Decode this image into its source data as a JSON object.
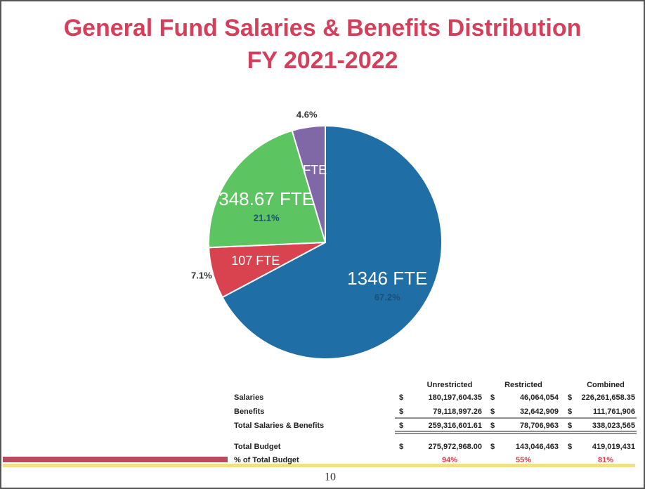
{
  "chart_data": {
    "type": "pie",
    "title": "General Fund Salaries & Benefits Distribution",
    "subtitle": "FY 2021-2022",
    "categories": [
      "1346 FTE",
      "107 FTE",
      "348.67 FTE",
      "FTE"
    ],
    "values": [
      67.2,
      7.1,
      21.1,
      4.6
    ],
    "value_labels": [
      "67.2%",
      "7.1%",
      "21.1%",
      "4.6%"
    ],
    "colors": [
      "#1f6fa6",
      "#d8434f",
      "#5cc460",
      "#8068a6"
    ]
  },
  "table": {
    "header": [
      "Unrestricted",
      "Restricted",
      "Combined"
    ],
    "rows": [
      [
        "Salaries",
        "$",
        "180,197,604.35",
        "$",
        "46,064,054",
        "$",
        "226,261,658.35"
      ],
      [
        "Benefits",
        "$",
        "79,118,997.26",
        "$",
        "32,642,909",
        "$",
        "111,761,906"
      ],
      [
        "Total Salaries & Benefits",
        "$",
        "259,316,601.61",
        "$",
        "78,706,963",
        "$",
        "338,023,565"
      ],
      [
        "Total Budget",
        "$",
        "275,972,968.00",
        "$",
        "143,046,463",
        "$",
        "419,019,431"
      ],
      [
        "% of Total Budget",
        "94%",
        "55%",
        "81%"
      ]
    ]
  },
  "page_number": "10"
}
